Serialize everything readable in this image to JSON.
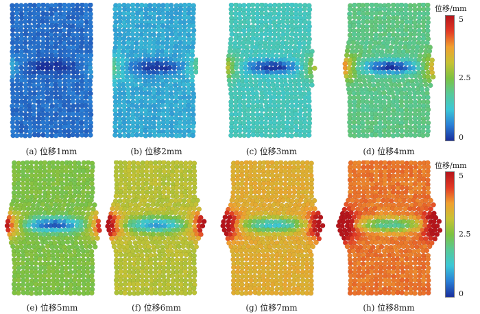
{
  "colorbar": {
    "title": "位移/mm",
    "ticks": [
      "5",
      "2.5",
      "0"
    ],
    "range": [
      0,
      5
    ],
    "colors": [
      "#1a2f9c",
      "#2a7fd6",
      "#3cc7d6",
      "#57c998",
      "#7dc242",
      "#c7c234",
      "#f0a030",
      "#e23a25",
      "#b5151b"
    ]
  },
  "panels": [
    {
      "caption": "(a)  位移1mm",
      "displacement_mm": 1
    },
    {
      "caption": "(b)  位移2mm",
      "displacement_mm": 2
    },
    {
      "caption": "(c)  位移3mm",
      "displacement_mm": 3
    },
    {
      "caption": "(d)  位移4mm",
      "displacement_mm": 4
    },
    {
      "caption": "(e)  位移5mm",
      "displacement_mm": 5
    },
    {
      "caption": "(f)  位移6mm",
      "displacement_mm": 6
    },
    {
      "caption": "(g)  位移7mm",
      "displacement_mm": 7
    },
    {
      "caption": "(h)  位移8mm",
      "displacement_mm": 8
    }
  ]
}
